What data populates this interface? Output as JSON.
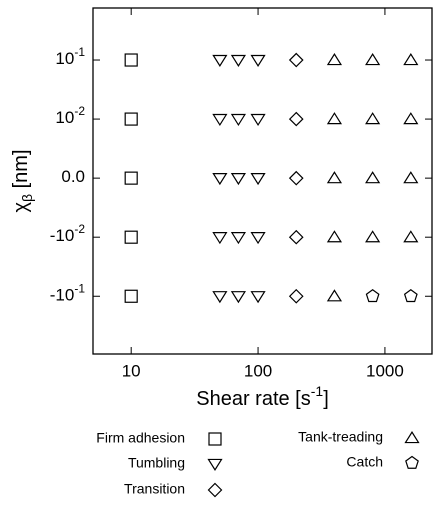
{
  "chart_data": {
    "type": "scatter",
    "xlabel": {
      "text": "Shear rate [s",
      "sup": "-1",
      "rest": "]"
    },
    "ylabel": {
      "text": "χ",
      "sub": "β",
      "rest": " [nm]"
    },
    "xscale": "log",
    "xlim": [
      5,
      2350
    ],
    "xticks": [
      10,
      100,
      1000
    ],
    "yscale": "symlog",
    "linthresh": 0.01,
    "ylim": [
      -0.95,
      0.76
    ],
    "yticks": [
      {
        "value": 0.1,
        "label": "10",
        "exponent": "-1"
      },
      {
        "value": 0.01,
        "label": "10",
        "exponent": "-2"
      },
      {
        "value": 0,
        "label": "0.0"
      },
      {
        "value": -0.01,
        "label": "-10",
        "exponent": "-2"
      },
      {
        "value": -0.1,
        "label": "-10",
        "exponent": "-1"
      }
    ],
    "series": [
      {
        "name": "Firm adhesion",
        "marker": "square",
        "color": "#000000",
        "x": [
          10,
          10,
          10,
          10,
          10
        ],
        "values": [
          0.1,
          0.01,
          0,
          -0.01,
          -0.1
        ]
      },
      {
        "name": "Tumbling",
        "marker": "triangle-down",
        "color": "#000000",
        "x": [
          50,
          70,
          100,
          50,
          70,
          100,
          50,
          70,
          100,
          50,
          70,
          100,
          50,
          70,
          100
        ],
        "values": [
          0.1,
          0.1,
          0.1,
          0.01,
          0.01,
          0.01,
          0,
          0,
          0,
          -0.01,
          -0.01,
          -0.01,
          -0.1,
          -0.1,
          -0.1
        ]
      },
      {
        "name": "Transition",
        "marker": "diamond",
        "color": "#000000",
        "x": [
          200,
          200,
          200,
          200,
          200
        ],
        "values": [
          0.1,
          0.01,
          0,
          -0.01,
          -0.1
        ]
      },
      {
        "name": "Tank-treading",
        "marker": "triangle-up",
        "color": "#000000",
        "x": [
          400,
          800,
          1600,
          400,
          800,
          1600,
          400,
          800,
          1600,
          400,
          800,
          1600,
          400
        ],
        "values": [
          0.1,
          0.1,
          0.1,
          0.01,
          0.01,
          0.01,
          0,
          0,
          0,
          -0.01,
          -0.01,
          -0.01,
          -0.1
        ]
      },
      {
        "name": "Catch",
        "marker": "pentagon",
        "color": "#000000",
        "x": [
          800,
          1600
        ],
        "values": [
          -0.1,
          -0.1
        ]
      }
    ]
  }
}
